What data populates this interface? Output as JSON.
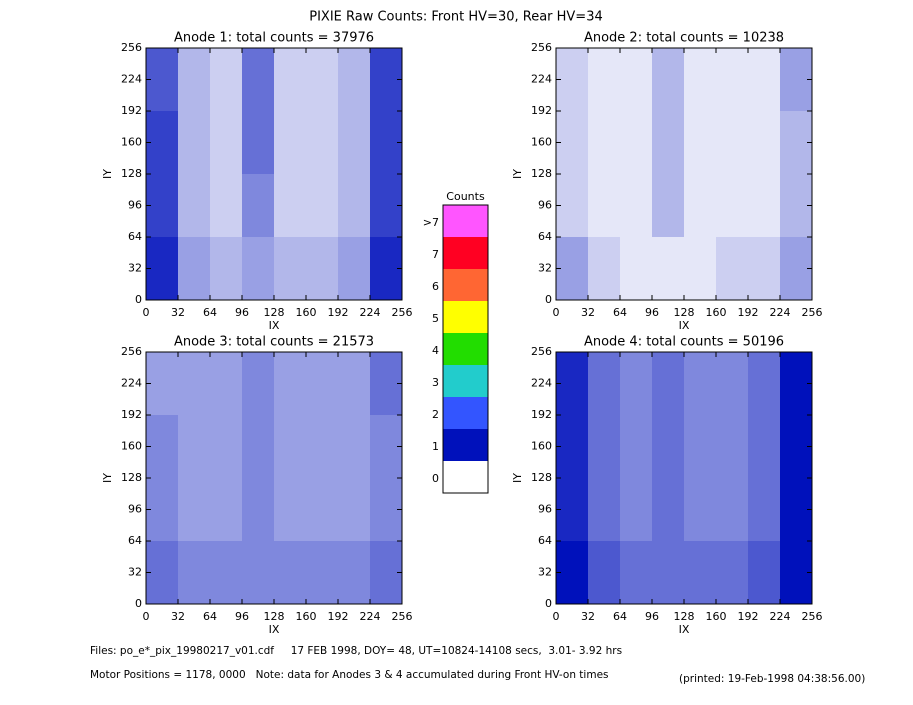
{
  "title": "PIXIE Raw Counts:  Front HV=30, Rear HV=34",
  "chart_data": [
    {
      "type": "heatmap",
      "title": "Anode 1: total counts = 37976",
      "xlabel": "IX",
      "ylabel": "IY",
      "color": "#0011bb",
      "xlim": [
        0,
        256
      ],
      "ylim": [
        0,
        256
      ],
      "xticks": [
        0,
        32,
        64,
        96,
        128,
        160,
        192,
        224,
        256
      ],
      "yticks": [
        0,
        32,
        64,
        96,
        128,
        160,
        192,
        224,
        256
      ],
      "z": [
        [
          0.7,
          0.3,
          0.2,
          0.6,
          0.2,
          0.2,
          0.3,
          0.8
        ],
        [
          0.8,
          0.3,
          0.2,
          0.6,
          0.2,
          0.2,
          0.3,
          0.8
        ],
        [
          0.8,
          0.3,
          0.2,
          0.5,
          0.2,
          0.2,
          0.3,
          0.8
        ],
        [
          0.9,
          0.4,
          0.3,
          0.4,
          0.3,
          0.3,
          0.4,
          0.9
        ]
      ]
    },
    {
      "type": "heatmap",
      "title": "Anode 2: total counts = 10238",
      "xlabel": "IX",
      "ylabel": "IY",
      "color": "#0011bb",
      "xlim": [
        0,
        256
      ],
      "ylim": [
        0,
        256
      ],
      "xticks": [
        0,
        32,
        64,
        96,
        128,
        160,
        192,
        224,
        256
      ],
      "yticks": [
        0,
        32,
        64,
        96,
        128,
        160,
        192,
        224,
        256
      ],
      "z": [
        [
          0.2,
          0.1,
          0.1,
          0.3,
          0.1,
          0.1,
          0.1,
          0.4
        ],
        [
          0.2,
          0.1,
          0.1,
          0.3,
          0.1,
          0.1,
          0.1,
          0.3
        ],
        [
          0.2,
          0.1,
          0.1,
          0.3,
          0.1,
          0.1,
          0.1,
          0.3
        ],
        [
          0.4,
          0.2,
          0.1,
          0.1,
          0.1,
          0.2,
          0.2,
          0.4
        ]
      ]
    },
    {
      "type": "heatmap",
      "title": "Anode 3: total counts = 21573",
      "xlabel": "IX",
      "ylabel": "IY",
      "color": "#0011bb",
      "xlim": [
        0,
        256
      ],
      "ylim": [
        0,
        256
      ],
      "xticks": [
        0,
        32,
        64,
        96,
        128,
        160,
        192,
        224,
        256
      ],
      "yticks": [
        0,
        32,
        64,
        96,
        128,
        160,
        192,
        224,
        256
      ],
      "z": [
        [
          0.4,
          0.4,
          0.4,
          0.5,
          0.4,
          0.4,
          0.4,
          0.6
        ],
        [
          0.5,
          0.4,
          0.4,
          0.5,
          0.4,
          0.4,
          0.4,
          0.5
        ],
        [
          0.5,
          0.4,
          0.4,
          0.5,
          0.4,
          0.4,
          0.4,
          0.5
        ],
        [
          0.6,
          0.5,
          0.5,
          0.5,
          0.5,
          0.5,
          0.5,
          0.6
        ]
      ]
    },
    {
      "type": "heatmap",
      "title": "Anode 4: total counts = 50196",
      "xlabel": "IX",
      "ylabel": "IY",
      "color": "#0011bb",
      "xlim": [
        0,
        256
      ],
      "ylim": [
        0,
        256
      ],
      "xticks": [
        0,
        32,
        64,
        96,
        128,
        160,
        192,
        224,
        256
      ],
      "yticks": [
        0,
        32,
        64,
        96,
        128,
        160,
        192,
        224,
        256
      ],
      "z": [
        [
          0.9,
          0.6,
          0.5,
          0.6,
          0.5,
          0.5,
          0.6,
          1.0
        ],
        [
          0.9,
          0.6,
          0.5,
          0.6,
          0.5,
          0.5,
          0.6,
          1.0
        ],
        [
          0.9,
          0.6,
          0.5,
          0.6,
          0.5,
          0.5,
          0.6,
          1.0
        ],
        [
          1.0,
          0.7,
          0.6,
          0.6,
          0.6,
          0.6,
          0.7,
          1.0
        ]
      ]
    }
  ],
  "colorbar": {
    "title": "Counts",
    "levels": [
      {
        "value": 8,
        "label": ">7"
      },
      7,
      6,
      5,
      4,
      3,
      2,
      1,
      0
    ],
    "colors": [
      "#ff55ff",
      "#ff0022",
      "#ff6633",
      "#ffff00",
      "#22dd00",
      "#22cccc",
      "#3355ff",
      "#0011bb",
      "#ffffff"
    ]
  },
  "footer": {
    "files": "Files: po_e*_pix_19980217_v01.cdf     17 FEB 1998, DOY= 48, UT=10824-14108 secs,  3.01- 3.92 hrs",
    "note": "Motor Positions = 1178, 0000   Note: data for Anodes 3 & 4 accumulated during Front HV-on times",
    "printed": "(printed: 19-Feb-1998 04:38:56.00)"
  }
}
